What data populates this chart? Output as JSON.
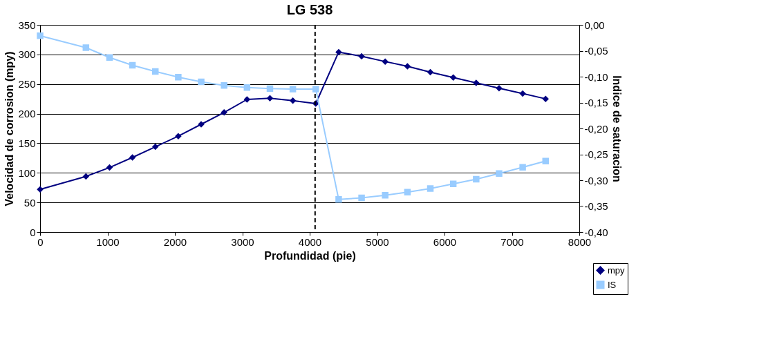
{
  "chart_data": {
    "type": "line",
    "title": "LG 538",
    "xlabel": "Profundidad (pie)",
    "ylabel": "Velocidad de corrosion (mpy)",
    "y2label": "Indice de saturacion",
    "x": [
      0,
      680,
      1030,
      1370,
      1710,
      2050,
      2390,
      2730,
      3070,
      3410,
      3750,
      4090,
      4430,
      4770,
      5120,
      5450,
      5790,
      6130,
      6470,
      6810,
      7160,
      7500
    ],
    "series": [
      {
        "name": "mpy",
        "color": "#000080",
        "marker": "diamond",
        "values": [
          72,
          94,
          109,
          126,
          144,
          162,
          182,
          202,
          224,
          226,
          222,
          217,
          304,
          297,
          288,
          280,
          270,
          261,
          252,
          243,
          234,
          225
        ]
      },
      {
        "name": "IS",
        "color": "#99ccff",
        "marker": "square",
        "axis": "y2",
        "values": [
          -0.021,
          -0.044,
          -0.063,
          -0.078,
          -0.09,
          -0.101,
          -0.11,
          -0.117,
          -0.121,
          -0.123,
          -0.124,
          -0.124,
          -0.337,
          -0.334,
          -0.329,
          -0.323,
          -0.316,
          -0.307,
          -0.298,
          -0.287,
          -0.275,
          -0.263
        ]
      }
    ],
    "xlim": [
      0,
      8000
    ],
    "xticks": [
      0,
      1000,
      2000,
      3000,
      4000,
      5000,
      6000,
      7000,
      8000
    ],
    "ylim": [
      0,
      350
    ],
    "yticks": [
      0,
      50,
      100,
      150,
      200,
      250,
      300,
      350
    ],
    "y2lim": [
      -0.4,
      0
    ],
    "y2ticks": [
      {
        "value": -0.4,
        "label": "-0,40"
      },
      {
        "value": -0.35,
        "label": "-0,35"
      },
      {
        "value": -0.3,
        "label": "-0,30"
      },
      {
        "value": -0.25,
        "label": "-0,25"
      },
      {
        "value": -0.2,
        "label": "-0,20"
      },
      {
        "value": -0.15,
        "label": "-0,15"
      },
      {
        "value": -0.1,
        "label": "-0,10"
      },
      {
        "value": -0.05,
        "label": "-0,05"
      },
      {
        "value": 0,
        "label": "0,00"
      }
    ],
    "ref_lines": [
      {
        "axis": "x",
        "value": 4080,
        "line_style": "dashed",
        "color": "#000000"
      }
    ],
    "grid": "y",
    "legend": "bottom right",
    "line_style": "solid"
  }
}
